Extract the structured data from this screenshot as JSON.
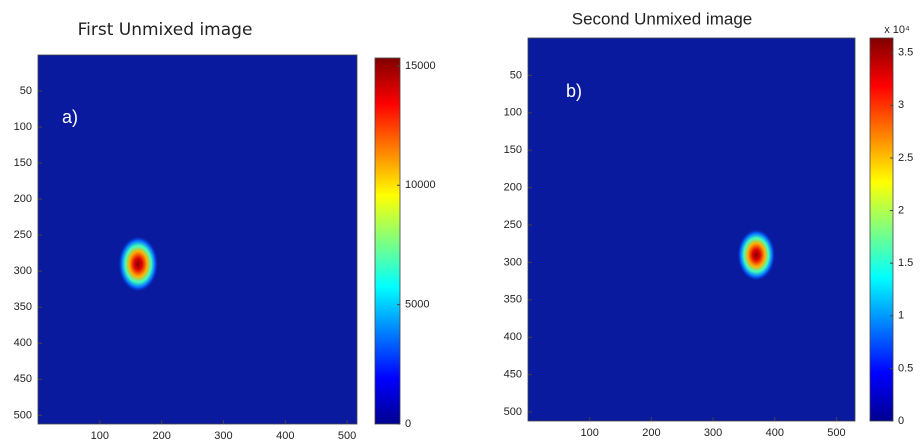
{
  "chart_data": [
    {
      "type": "heatmap",
      "title": "First Unmixed image",
      "annotation": "a)",
      "background": "#0a1a9e",
      "xlim": [
        0,
        516
      ],
      "ylim": [
        0,
        512
      ],
      "xticks": [
        100,
        200,
        300,
        400,
        500
      ],
      "yticks": [
        50,
        100,
        150,
        200,
        250,
        300,
        350,
        400,
        450,
        500
      ],
      "clim": [
        0,
        15330
      ],
      "cticks": [
        0,
        5000,
        10000,
        15000
      ],
      "peak": {
        "x": 162,
        "y": 290,
        "value": 15300
      }
    },
    {
      "type": "heatmap",
      "title": "Second Unmixed image",
      "annotation": "b)",
      "background": "#0a1a9e",
      "xlim": [
        0,
        530
      ],
      "ylim": [
        0,
        512
      ],
      "xticks": [
        100,
        200,
        300,
        400,
        500
      ],
      "yticks": [
        50,
        100,
        150,
        200,
        250,
        300,
        350,
        400,
        450,
        500
      ],
      "clim": [
        0,
        3.64
      ],
      "cticks": [
        0,
        0.5,
        1,
        1.5,
        2,
        2.5,
        3,
        3.5
      ],
      "colorbar_scale": "x 10⁴",
      "peak": {
        "x": 370,
        "y": 290,
        "value": 3.6
      }
    }
  ]
}
